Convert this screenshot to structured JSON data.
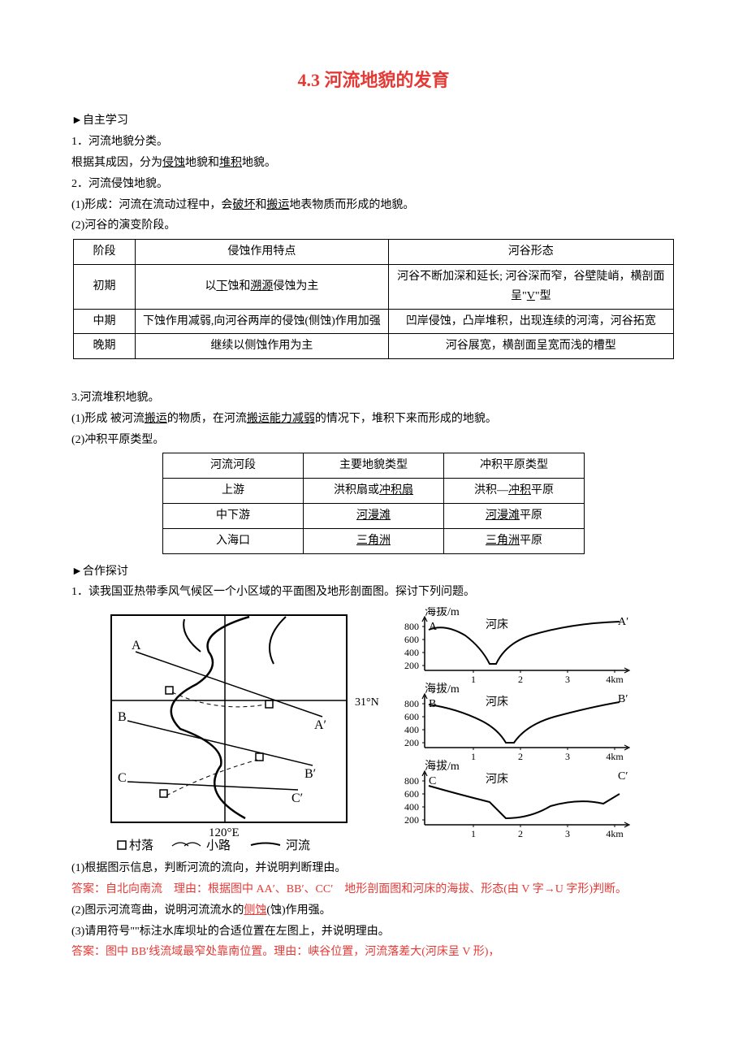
{
  "title": "4.3 河流地貌的发育",
  "self_study_label": "►自主学习",
  "item1_label": "1．河流地貌分类。",
  "item1_text_a": "根据其成因，分为",
  "item1_u1": "侵蚀",
  "item1_mid": "地貌和",
  "item1_u2": "堆积",
  "item1_text_b": "地貌。",
  "item2_label": "2．河流侵蚀地貌。",
  "item2_1_a": "(1)形成：河流在流动过程中，会",
  "item2_1_u1": "破坏",
  "item2_1_mid": "和",
  "item2_1_u2": "搬运",
  "item2_1_b": "地表物质而形成的地貌。",
  "item2_2": "(2)河谷的演变阶段。",
  "table1": {
    "headers": [
      "阶段",
      "侵蚀作用特点",
      "河谷形态"
    ],
    "rows": [
      {
        "stage": "初期",
        "feature_a": "以",
        "feature_u1": "下",
        "feature_mid": "蚀和",
        "feature_u2": "溯源",
        "feature_b": "侵蚀为主",
        "form_a": "河谷不断加深和延长; 河谷深而窄，谷壁陡峭，横剖面呈\"",
        "form_u": "V",
        "form_b": "\"型"
      },
      {
        "stage": "中期",
        "feature": "下蚀作用减弱,向河谷两岸的侵蚀(侧蚀)作用加强",
        "form": "凹岸侵蚀，凸岸堆积，出现连续的河湾，河谷拓宽"
      },
      {
        "stage": "晚期",
        "feature": "继续以侧蚀作用为主",
        "form": "河谷展宽，横剖面呈宽而浅的槽型"
      }
    ]
  },
  "item3_label": "3.河流堆积地貌。",
  "item3_1_a": "(1)形成 被河流",
  "item3_1_u1": "搬运",
  "item3_1_mid": "的物质，在河流",
  "item3_1_u2": "搬运能力减弱",
  "item3_1_b": "的情况下，堆积下来而形成的地貌。",
  "item3_2": "(2)冲积平原类型。",
  "table2": {
    "headers": [
      "河流河段",
      "主要地貌类型",
      "冲积平原类型"
    ],
    "rows": [
      {
        "seg": "上游",
        "type_a": "洪积扇或",
        "type_u": "冲积扇",
        "plain_a": "洪积—",
        "plain_u": "冲积",
        "plain_b": "平原"
      },
      {
        "seg": "中下游",
        "type_u": "河漫滩",
        "plain_u": "河漫滩",
        "plain_b": "平原"
      },
      {
        "seg": "入海口",
        "type_u": "三角洲",
        "plain_u": "三角洲",
        "plain_b": "平原"
      }
    ]
  },
  "coop_label": "►合作探讨",
  "coop_q1": "1．读我国亚热带季风气候区一个小区域的平面图及地形剖面图。探讨下列问题。",
  "map_labels": {
    "A": "A",
    "A2": "A′",
    "B": "B",
    "B2": "B′",
    "C": "C",
    "C2": "C′",
    "lon": "120°E",
    "lat": "31°N",
    "legend_village": "村落",
    "legend_road": "小路",
    "legend_river": "河流",
    "village_symbol": "□",
    "road_symbol": "⌒"
  },
  "profiles": {
    "y_label": "海拔/m",
    "riverbed": "河床",
    "y_ticks": [
      "800",
      "600",
      "400",
      "200"
    ],
    "x_ticks": [
      "1",
      "2",
      "3",
      "4km"
    ],
    "rows": [
      {
        "left": "A",
        "right": "A′"
      },
      {
        "left": "B",
        "right": "B′"
      },
      {
        "left": "C",
        "right": "C′"
      }
    ]
  },
  "q1_1": "(1)根据图示信息，判断河流的流向，并说明判断理由。",
  "a1_1_label": "答案：",
  "a1_1_text": "自北向南流　理由：根据图中 AA′、BB′、CC′　地形剖面图和河床的海拔、形态(由 V 字→U 字形)判断。",
  "q1_2_a": "(2)图示河流弯曲，说明河流流水的",
  "q1_2_u": "侧蚀",
  "q1_2_b": "(蚀)作用强。",
  "q1_3": "(3)请用符号\"\"标注水库坝址的合适位置在左图上，并说明理由。",
  "a1_3_label": "答案：",
  "a1_3_text": "图中 BB′线流域最窄处靠南位置。理由：峡谷位置，河流落差大(河床呈 V 形)，"
}
